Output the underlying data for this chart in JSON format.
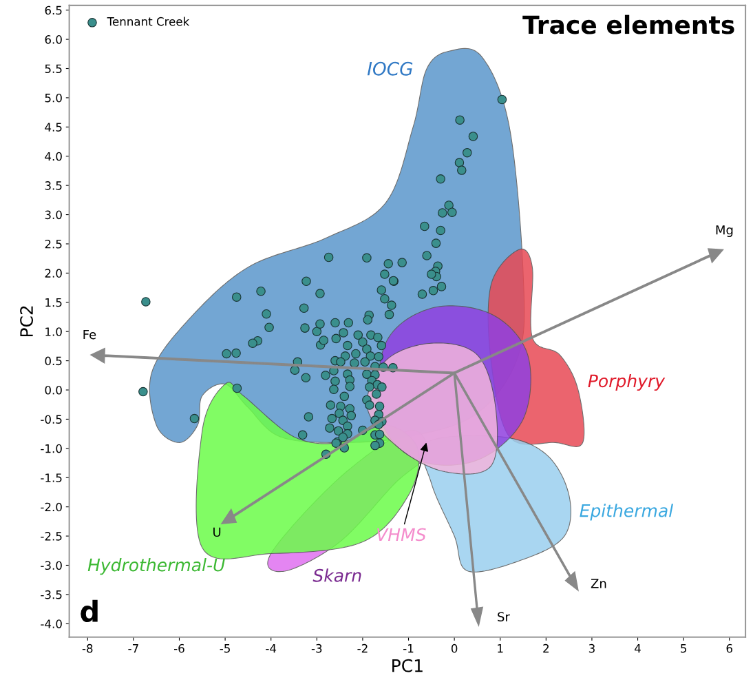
{
  "chart_data": {
    "type": "scatter",
    "title": "Trace elements",
    "xlabel": "PC1",
    "ylabel": "PC2",
    "xlim": [
      -8.4,
      6.35
    ],
    "ylim": [
      -4.23,
      6.58
    ],
    "xticks": [
      -8,
      -7,
      -6,
      -5,
      -4,
      -3,
      -2,
      -1,
      0,
      1,
      2,
      3,
      4,
      5,
      6
    ],
    "yticks": [
      {
        "value": -4,
        "label": "-4.0"
      },
      {
        "value": -3.5,
        "label": "-3.5"
      },
      {
        "value": -3,
        "label": "-3.0"
      },
      {
        "value": -2.5,
        "label": "-2.5"
      },
      {
        "value": -2,
        "label": "-2.0"
      },
      {
        "value": -1.5,
        "label": "-1.5"
      },
      {
        "value": -1,
        "label": "-1.0"
      },
      {
        "value": -0.5,
        "label": "-0.5"
      },
      {
        "value": 0,
        "label": "0.0"
      },
      {
        "value": 0.5,
        "label": "0.5"
      },
      {
        "value": 1,
        "label": "1.0"
      },
      {
        "value": 1.5,
        "label": "1.5"
      },
      {
        "value": 2,
        "label": "2.0"
      },
      {
        "value": 2.5,
        "label": "2.5"
      },
      {
        "value": 3,
        "label": "3.0"
      },
      {
        "value": 3.5,
        "label": "3.5"
      },
      {
        "value": 4,
        "label": "4.0"
      },
      {
        "value": 4.5,
        "label": "4.5"
      },
      {
        "value": 5,
        "label": "5.0"
      },
      {
        "value": 5.5,
        "label": "5.5"
      },
      {
        "value": 6,
        "label": "6.0"
      },
      {
        "value": 6.5,
        "label": "6.5"
      }
    ],
    "grid": false,
    "legend": "top left",
    "marker": "circle",
    "series": [
      {
        "name": "Tennant Creek",
        "color": "#3a8f8c",
        "x": [
          -6.73,
          -6.79,
          -5.67,
          -4.75,
          -4.22,
          -3.23,
          -2.74,
          -1.91,
          -2.93,
          -3.28,
          -4.1,
          -4.04,
          -4.29,
          -4.4,
          -4.97,
          -4.76,
          -4.74,
          -3.26,
          -3.0,
          -2.93,
          -2.6,
          -2.31,
          -2.58,
          -2.92,
          -2.42,
          -3.42,
          -3.48,
          -3.24,
          -2.81,
          -3.18,
          -3.31,
          -2.8,
          -2.67,
          -2.72,
          -1.44,
          -1.14,
          -1.52,
          -1.32,
          -1.59,
          -1.52,
          -1.37,
          -1.42,
          -1.86,
          -1.89,
          -2.85,
          -2.1,
          -1.82,
          -1.67,
          -1.59,
          -2.0,
          -2.33,
          -1.91,
          -2.15,
          -2.38,
          -1.83,
          -1.65,
          -1.95,
          -2.6,
          -2.48,
          -2.18,
          -1.73,
          -1.55,
          -1.34,
          -2.63,
          -2.33,
          -1.91,
          -1.73,
          -2.6,
          -2.28,
          -1.8,
          -1.68,
          -2.63,
          -2.28,
          -1.58,
          -1.85,
          -1.7,
          -2.4,
          -1.91,
          -2.7,
          -2.48,
          -2.28,
          -1.85,
          -1.63,
          -2.51,
          -2.25,
          -1.65,
          -2.43,
          -1.73,
          -1.58,
          -2.33,
          -2.0,
          -1.65,
          -2.53,
          -2.33,
          -1.73,
          -1.63,
          -2.55,
          -2.43,
          -1.63,
          -1.73,
          -2.4,
          -2.58,
          1.04,
          0.12,
          0.41,
          0.28,
          0.11,
          0.16,
          -0.3,
          -0.12,
          -0.26,
          -0.05,
          -0.65,
          -0.3,
          -0.4,
          -0.6,
          -0.36,
          -0.41,
          -0.39,
          -0.5,
          -0.28,
          -0.46,
          -0.7,
          -1.33
        ],
        "values": [
          1.51,
          -0.03,
          -0.49,
          1.59,
          1.69,
          1.86,
          2.27,
          2.26,
          1.65,
          1.4,
          1.3,
          1.07,
          0.84,
          0.8,
          0.62,
          0.63,
          0.03,
          1.06,
          1.0,
          1.13,
          1.15,
          1.15,
          0.88,
          0.77,
          0.98,
          0.48,
          0.34,
          0.21,
          0.25,
          -0.46,
          -0.77,
          -1.1,
          -0.49,
          -0.65,
          2.16,
          2.18,
          1.98,
          1.86,
          1.71,
          1.56,
          1.45,
          1.29,
          1.28,
          1.2,
          0.85,
          0.94,
          0.94,
          0.9,
          0.76,
          0.82,
          0.76,
          0.7,
          0.62,
          0.58,
          0.58,
          0.57,
          0.48,
          0.5,
          0.48,
          0.46,
          0.4,
          0.39,
          0.38,
          0.33,
          0.27,
          0.27,
          0.26,
          0.15,
          0.17,
          0.16,
          0.09,
          0.01,
          0.06,
          0.05,
          0.05,
          -0.07,
          -0.11,
          -0.17,
          -0.26,
          -0.28,
          -0.32,
          -0.26,
          -0.28,
          -0.4,
          -0.44,
          -0.42,
          -0.52,
          -0.52,
          -0.54,
          -0.62,
          -0.69,
          -0.59,
          -0.7,
          -0.75,
          -0.77,
          -0.76,
          -0.89,
          -0.81,
          -0.91,
          -0.95,
          -0.99,
          -0.91,
          4.97,
          4.62,
          4.34,
          4.06,
          3.89,
          3.76,
          3.61,
          3.16,
          3.03,
          3.04,
          2.8,
          2.73,
          2.51,
          2.3,
          2.12,
          2.03,
          1.94,
          1.98,
          1.77,
          1.7,
          1.64,
          1.87
        ]
      }
    ],
    "annotations": [
      "IOCG",
      "Porphyry",
      "Epithermal",
      "Skarn",
      "Hydrothermal-U",
      "d",
      "VHMS",
      "Fe",
      "Mg",
      "U",
      "Sr",
      "Zn"
    ]
  }
}
